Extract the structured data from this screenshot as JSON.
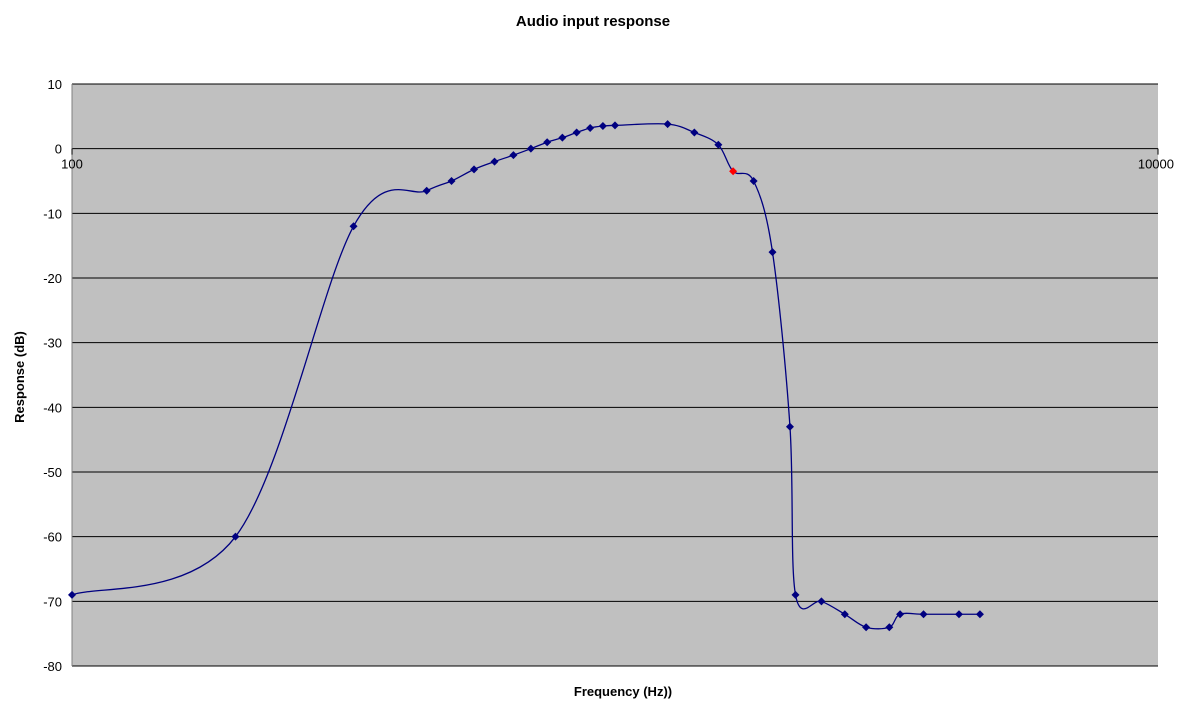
{
  "chart_data": {
    "type": "line",
    "title": "Audio input response",
    "xlabel": "Frequency (Hz))",
    "ylabel": "Response (dB)",
    "x_scale": "log",
    "xlim": [
      100,
      10000
    ],
    "ylim": [
      -80,
      10
    ],
    "x_ticks": [
      {
        "value": 100,
        "label": "100"
      },
      {
        "value": 10000,
        "label": "10000"
      }
    ],
    "y_ticks": [
      10,
      0,
      -10,
      -20,
      -30,
      -40,
      -50,
      -60,
      -70,
      -80
    ],
    "grid": "horizontal",
    "legend": "none",
    "colors": {
      "plot_background": "#c0c0c0",
      "line": "#000080",
      "marker": "#000080",
      "highlight_marker": "#ff0000",
      "gridline": "#000000"
    },
    "series": [
      {
        "x": [
          100,
          200,
          330,
          450,
          500,
          550,
          600,
          650,
          700,
          750,
          800,
          850,
          900,
          950,
          1000,
          1250,
          1400,
          1550,
          1650,
          1800,
          1950,
          2100,
          2150,
          2400,
          2650,
          2900,
          3200,
          3350,
          3700,
          4300,
          4700
        ],
        "y": [
          -69,
          -60,
          -12,
          -6.5,
          -5,
          -3.2,
          -2,
          -1,
          0,
          1,
          1.7,
          2.5,
          3.2,
          3.5,
          3.6,
          3.8,
          2.5,
          0.6,
          -3.5,
          -5,
          -16,
          -43,
          -69,
          -70,
          -72,
          -74,
          -74,
          -72,
          -72,
          -72,
          -72
        ]
      }
    ],
    "highlight_points": [
      {
        "x": 1650,
        "y": -3.5
      }
    ]
  }
}
